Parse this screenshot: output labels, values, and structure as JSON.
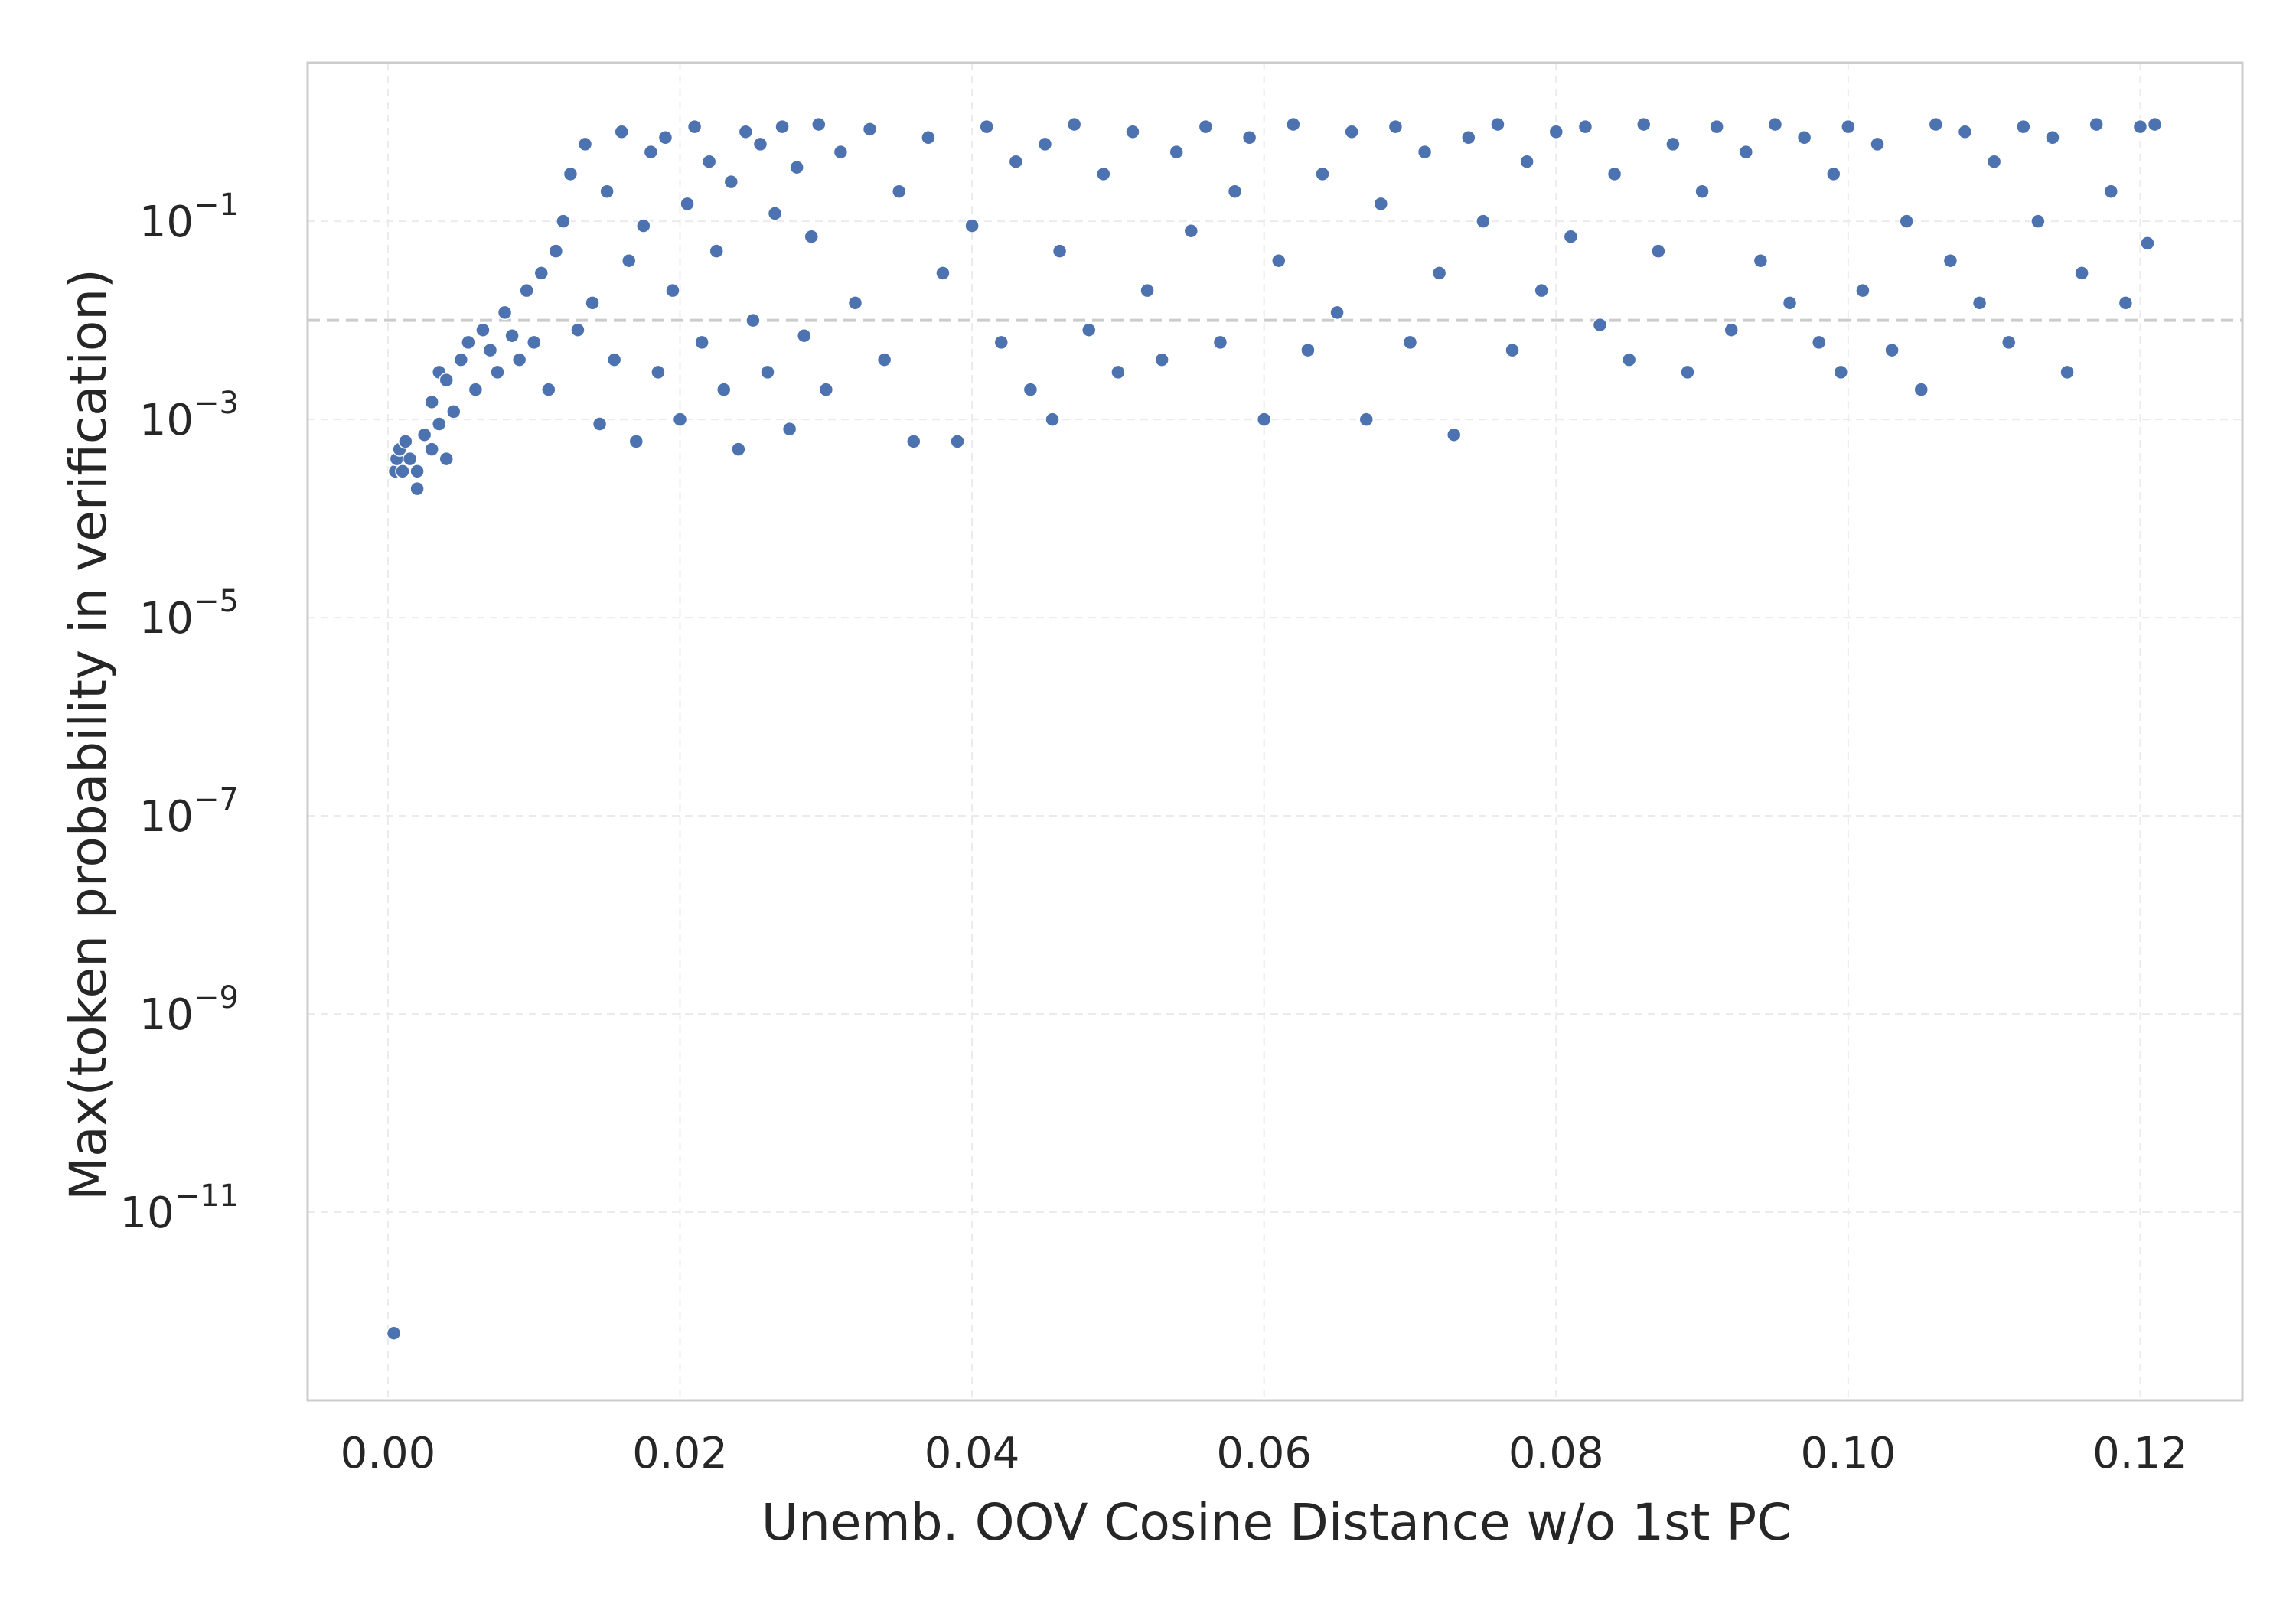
{
  "chart_data": {
    "type": "scatter",
    "title": "",
    "xlabel": "Unemb. OOV Cosine Distance w/o 1st PC",
    "ylabel": "Max(token probability in verification)",
    "xlim": [
      -0.0055,
      0.127
    ],
    "ylim_log10": [
      -12.9,
      0.6
    ],
    "y_scale": "log",
    "grid": true,
    "x_ticks": [
      0.0,
      0.02,
      0.04,
      0.06,
      0.08,
      0.1,
      0.12
    ],
    "x_tick_labels": [
      "0.00",
      "0.02",
      "0.04",
      "0.06",
      "0.08",
      "0.10",
      "0.12"
    ],
    "y_ticks_log10": [
      -1,
      -3,
      -5,
      -7,
      -9,
      -11
    ],
    "y_tick_labels": [
      {
        "base": "10",
        "exp": "−1"
      },
      {
        "base": "10",
        "exp": "−3"
      },
      {
        "base": "10",
        "exp": "−5"
      },
      {
        "base": "10",
        "exp": "−7"
      },
      {
        "base": "10",
        "exp": "−9"
      },
      {
        "base": "10",
        "exp": "−11"
      }
    ],
    "reference_line": {
      "y": 0.01,
      "style": "dashed"
    },
    "point_color": "#4c72b0",
    "points": [
      [
        0.0004,
        6e-13
      ],
      [
        0.0005,
        0.0003
      ],
      [
        0.0006,
        0.0004
      ],
      [
        0.0008,
        0.0005
      ],
      [
        0.001,
        0.0003
      ],
      [
        0.0012,
        0.0006
      ],
      [
        0.0015,
        0.0004
      ],
      [
        0.002,
        0.0003
      ],
      [
        0.0025,
        0.0007
      ],
      [
        0.003,
        0.0005
      ],
      [
        0.0035,
        0.0009
      ],
      [
        0.004,
        0.0004
      ],
      [
        0.0045,
        0.0012
      ],
      [
        0.002,
        0.0002
      ],
      [
        0.003,
        0.0015
      ],
      [
        0.0035,
        0.003
      ],
      [
        0.004,
        0.0025
      ],
      [
        0.005,
        0.004
      ],
      [
        0.0055,
        0.006
      ],
      [
        0.006,
        0.002
      ],
      [
        0.0065,
        0.008
      ],
      [
        0.007,
        0.005
      ],
      [
        0.0075,
        0.003
      ],
      [
        0.008,
        0.012
      ],
      [
        0.0085,
        0.007
      ],
      [
        0.009,
        0.004
      ],
      [
        0.0095,
        0.02
      ],
      [
        0.01,
        0.006
      ],
      [
        0.0105,
        0.03
      ],
      [
        0.011,
        0.002
      ],
      [
        0.0115,
        0.05
      ],
      [
        0.012,
        0.1
      ],
      [
        0.0125,
        0.3
      ],
      [
        0.013,
        0.008
      ],
      [
        0.0135,
        0.6
      ],
      [
        0.014,
        0.015
      ],
      [
        0.0145,
        0.0009
      ],
      [
        0.015,
        0.2
      ],
      [
        0.0155,
        0.004
      ],
      [
        0.016,
        0.8
      ],
      [
        0.0165,
        0.04
      ],
      [
        0.017,
        0.0006
      ],
      [
        0.0175,
        0.09
      ],
      [
        0.018,
        0.5
      ],
      [
        0.0185,
        0.003
      ],
      [
        0.019,
        0.7
      ],
      [
        0.0195,
        0.02
      ],
      [
        0.02,
        0.001
      ],
      [
        0.0205,
        0.15
      ],
      [
        0.021,
        0.9
      ],
      [
        0.0215,
        0.006
      ],
      [
        0.022,
        0.4
      ],
      [
        0.0225,
        0.05
      ],
      [
        0.023,
        0.002
      ],
      [
        0.0235,
        0.25
      ],
      [
        0.024,
        0.0005
      ],
      [
        0.0245,
        0.8
      ],
      [
        0.025,
        0.01
      ],
      [
        0.0255,
        0.6
      ],
      [
        0.026,
        0.003
      ],
      [
        0.0265,
        0.12
      ],
      [
        0.027,
        0.9
      ],
      [
        0.0275,
        0.0008
      ],
      [
        0.028,
        0.35
      ],
      [
        0.0285,
        0.007
      ],
      [
        0.029,
        0.07
      ],
      [
        0.0295,
        0.95
      ],
      [
        0.03,
        0.002
      ],
      [
        0.031,
        0.5
      ],
      [
        0.032,
        0.015
      ],
      [
        0.033,
        0.85
      ],
      [
        0.034,
        0.004
      ],
      [
        0.035,
        0.2
      ],
      [
        0.036,
        0.0006
      ],
      [
        0.037,
        0.7
      ],
      [
        0.038,
        0.03
      ],
      [
        0.039,
        0.0006
      ],
      [
        0.04,
        0.09
      ],
      [
        0.041,
        0.9
      ],
      [
        0.042,
        0.006
      ],
      [
        0.043,
        0.4
      ],
      [
        0.044,
        0.002
      ],
      [
        0.045,
        0.6
      ],
      [
        0.0455,
        0.001
      ],
      [
        0.046,
        0.05
      ],
      [
        0.047,
        0.95
      ],
      [
        0.048,
        0.008
      ],
      [
        0.049,
        0.3
      ],
      [
        0.05,
        0.003
      ],
      [
        0.051,
        0.8
      ],
      [
        0.052,
        0.02
      ],
      [
        0.053,
        0.004
      ],
      [
        0.054,
        0.5
      ],
      [
        0.055,
        0.08
      ],
      [
        0.056,
        0.9
      ],
      [
        0.057,
        0.006
      ],
      [
        0.058,
        0.2
      ],
      [
        0.059,
        0.7
      ],
      [
        0.06,
        0.001
      ],
      [
        0.061,
        0.04
      ],
      [
        0.062,
        0.95
      ],
      [
        0.063,
        0.005
      ],
      [
        0.064,
        0.3
      ],
      [
        0.065,
        0.012
      ],
      [
        0.066,
        0.8
      ],
      [
        0.067,
        0.001
      ],
      [
        0.068,
        0.15
      ],
      [
        0.069,
        0.9
      ],
      [
        0.07,
        0.006
      ],
      [
        0.071,
        0.5
      ],
      [
        0.072,
        0.03
      ],
      [
        0.073,
        0.0007
      ],
      [
        0.074,
        0.7
      ],
      [
        0.075,
        0.1
      ],
      [
        0.076,
        0.95
      ],
      [
        0.077,
        0.005
      ],
      [
        0.078,
        0.4
      ],
      [
        0.079,
        0.02
      ],
      [
        0.08,
        0.8
      ],
      [
        0.081,
        0.07
      ],
      [
        0.082,
        0.9
      ],
      [
        0.083,
        0.009
      ],
      [
        0.084,
        0.3
      ],
      [
        0.085,
        0.004
      ],
      [
        0.086,
        0.95
      ],
      [
        0.087,
        0.05
      ],
      [
        0.088,
        0.6
      ],
      [
        0.089,
        0.003
      ],
      [
        0.09,
        0.2
      ],
      [
        0.091,
        0.9
      ],
      [
        0.092,
        0.008
      ],
      [
        0.093,
        0.5
      ],
      [
        0.094,
        0.04
      ],
      [
        0.095,
        0.95
      ],
      [
        0.096,
        0.015
      ],
      [
        0.097,
        0.7
      ],
      [
        0.098,
        0.006
      ],
      [
        0.099,
        0.3
      ],
      [
        0.0995,
        0.003
      ],
      [
        0.1,
        0.9
      ],
      [
        0.101,
        0.02
      ],
      [
        0.102,
        0.6
      ],
      [
        0.103,
        0.005
      ],
      [
        0.104,
        0.1
      ],
      [
        0.105,
        0.002
      ],
      [
        0.106,
        0.95
      ],
      [
        0.107,
        0.04
      ],
      [
        0.108,
        0.8
      ],
      [
        0.109,
        0.015
      ],
      [
        0.11,
        0.4
      ],
      [
        0.111,
        0.006
      ],
      [
        0.112,
        0.9
      ],
      [
        0.113,
        0.1
      ],
      [
        0.114,
        0.7
      ],
      [
        0.115,
        0.003
      ],
      [
        0.116,
        0.03
      ],
      [
        0.117,
        0.95
      ],
      [
        0.118,
        0.2
      ],
      [
        0.119,
        0.015
      ],
      [
        0.12,
        0.9
      ],
      [
        0.1205,
        0.06
      ],
      [
        0.121,
        0.95
      ]
    ]
  }
}
